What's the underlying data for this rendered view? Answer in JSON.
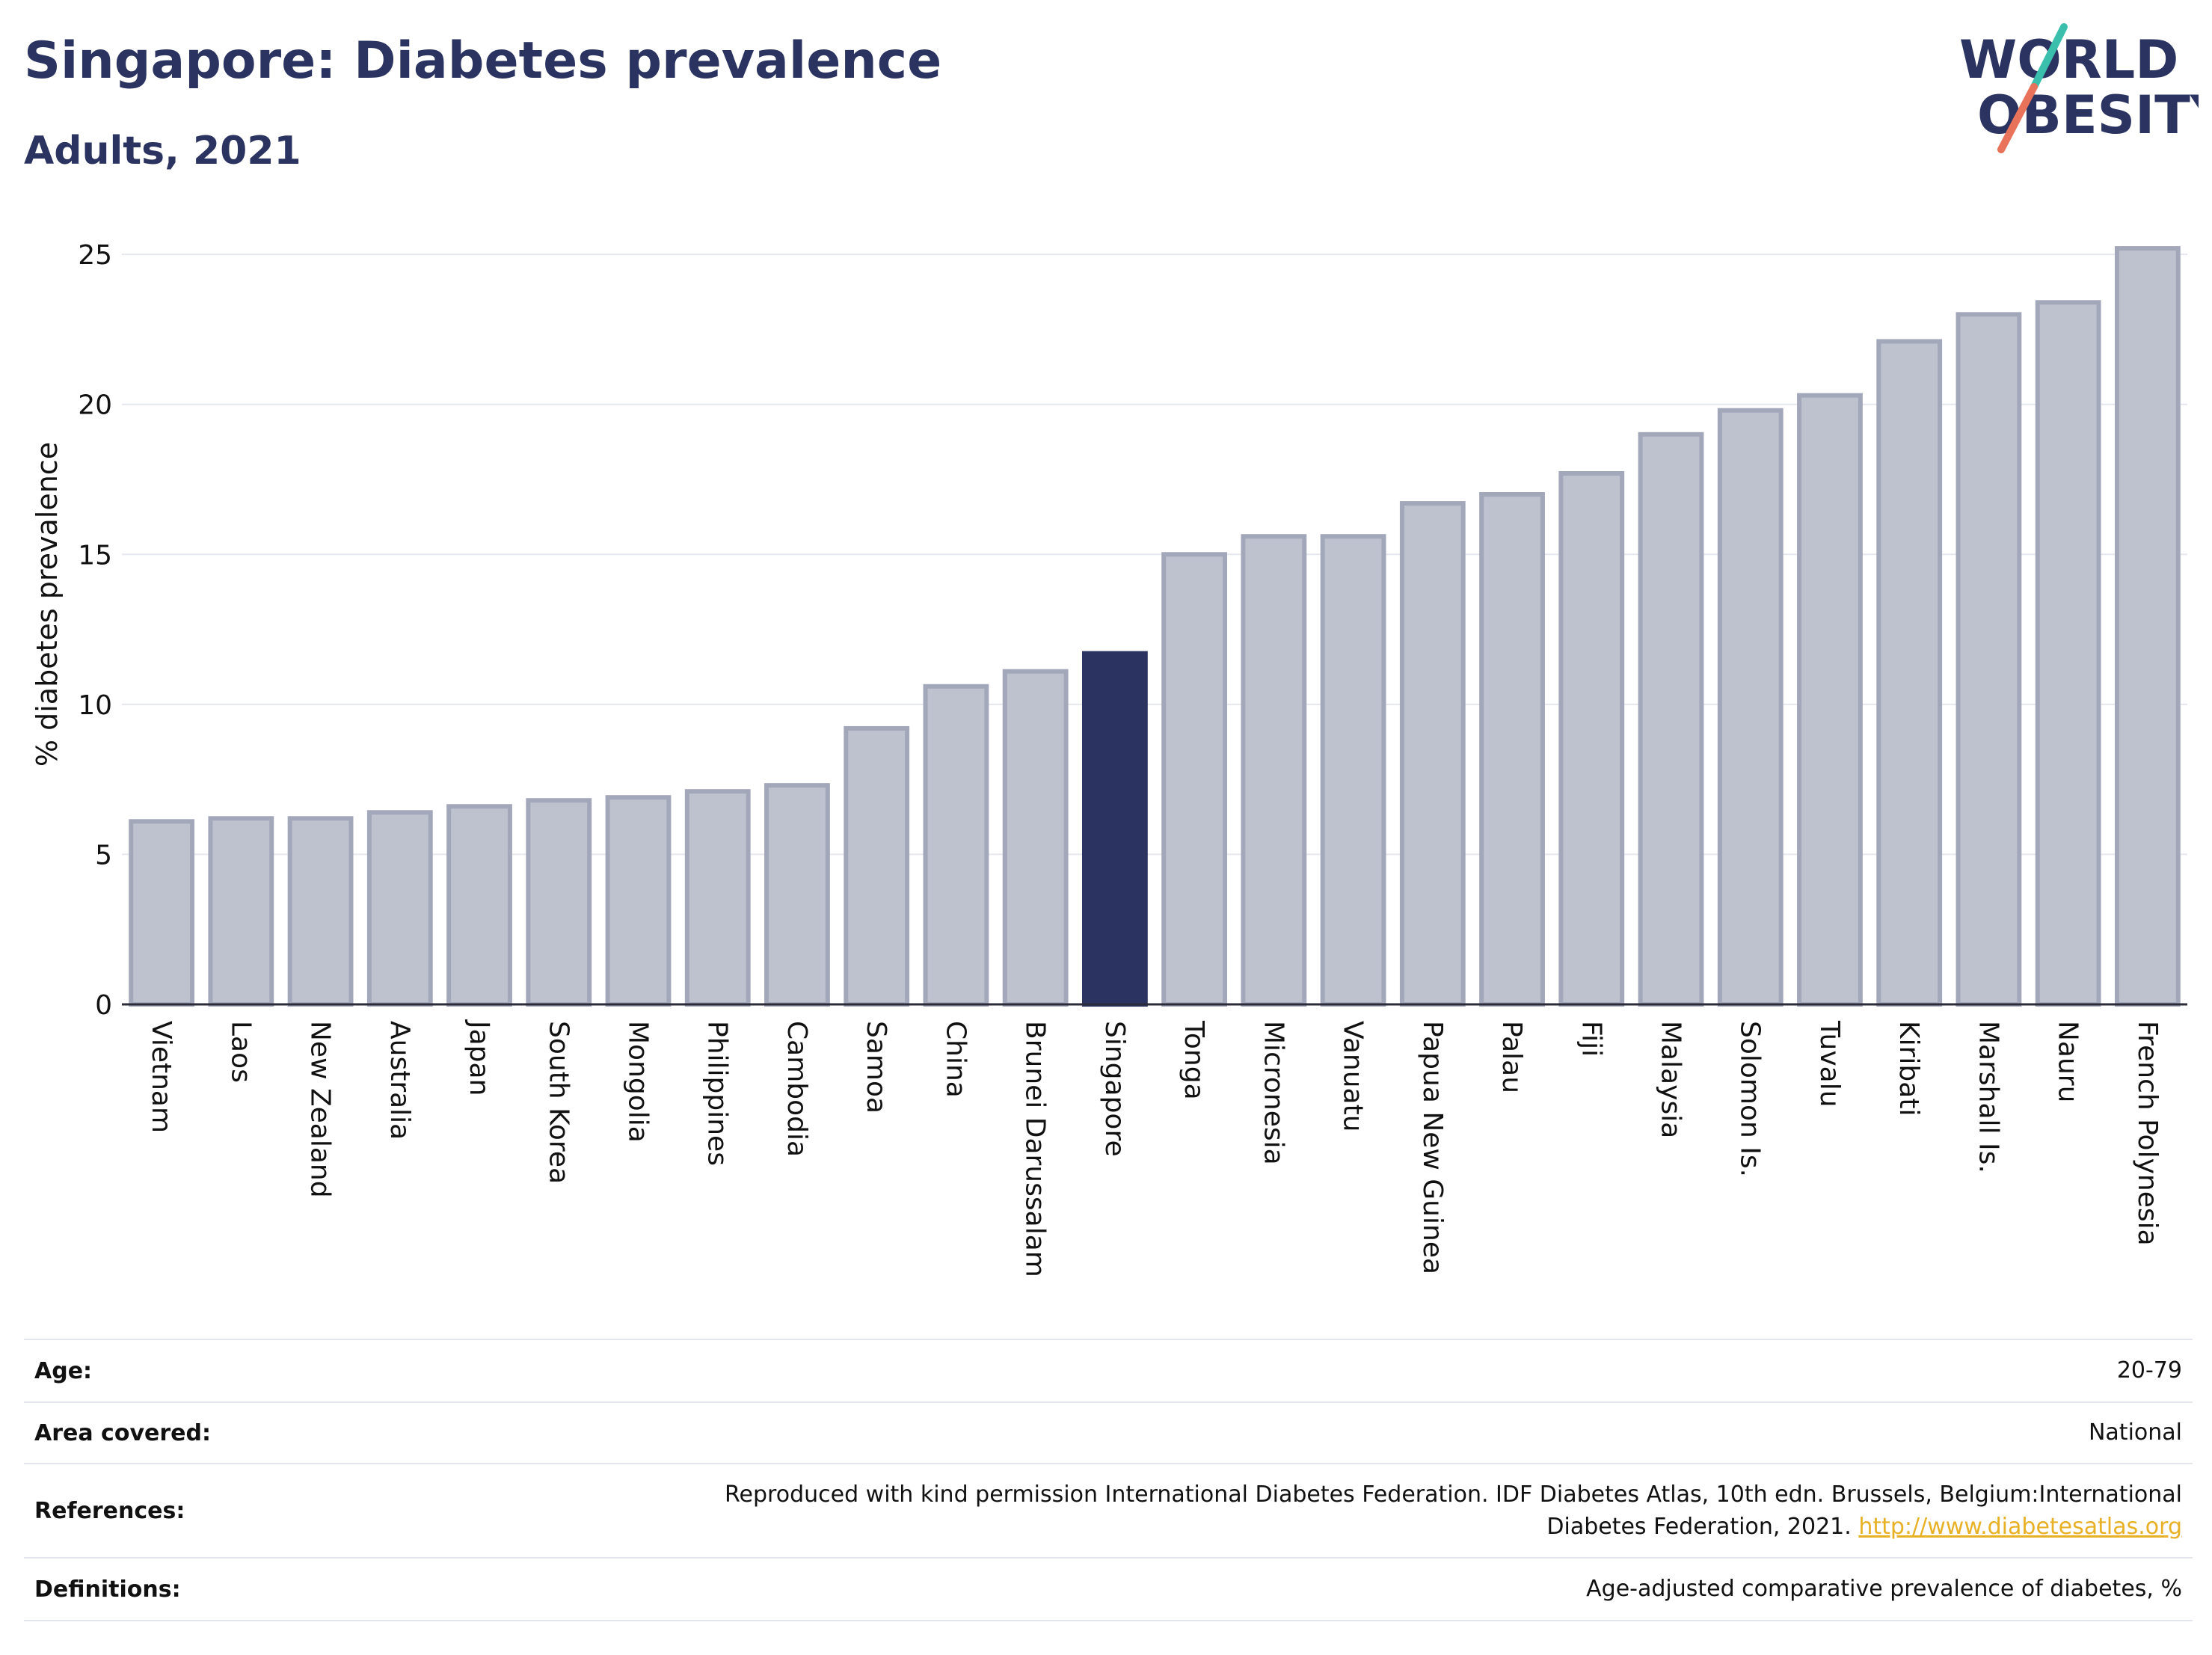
{
  "header": {
    "title": "Singapore: Diabetes prevalence",
    "subtitle": "Adults, 2021"
  },
  "logo": {
    "line1": "WORLD",
    "line2": "OBESITY",
    "colors": {
      "text": "#2b3461",
      "slash_top": "#3bbfad",
      "slash_bottom": "#e8735a"
    }
  },
  "chart_data": {
    "type": "bar",
    "ylabel": "% diabetes prevalence",
    "xlabel": "",
    "ylim": [
      0,
      26
    ],
    "yticks": [
      0,
      5,
      10,
      15,
      20,
      25
    ],
    "grid": true,
    "highlight": "Singapore",
    "colors": {
      "bar": "#bec1ce",
      "bar_border": "#a3a7ba",
      "highlight": "#2b3461"
    },
    "categories": [
      "Vietnam",
      "Laos",
      "New Zealand",
      "Australia",
      "Japan",
      "South Korea",
      "Mongolia",
      "Philippines",
      "Cambodia",
      "Samoa",
      "China",
      "Brunei Darussalam",
      "Singapore",
      "Tonga",
      "Micronesia",
      "Vanuatu",
      "Papua New Guinea",
      "Palau",
      "Fiji",
      "Malaysia",
      "Solomon Is.",
      "Tuvalu",
      "Kiribati",
      "Marshall Is.",
      "Nauru",
      "French Polynesia"
    ],
    "values": [
      6.1,
      6.2,
      6.2,
      6.4,
      6.6,
      6.8,
      6.9,
      7.1,
      7.3,
      9.2,
      10.6,
      11.1,
      11.7,
      15.0,
      15.6,
      15.6,
      16.7,
      17.0,
      17.7,
      19.0,
      19.8,
      20.3,
      22.1,
      23.0,
      23.4,
      25.2
    ]
  },
  "meta": {
    "age_label": "Age:",
    "age_value": "20-79",
    "area_label": "Area covered:",
    "area_value": "National",
    "references_label": "References:",
    "references_text": "Reproduced with kind permission International Diabetes Federation.  IDF Diabetes Atlas, 10th edn. Brussels, Belgium:International Diabetes Federation, 2021. ",
    "references_link": "http://www.diabetesatlas.org",
    "definitions_label": "Definitions:",
    "definitions_value": "Age-adjusted comparative prevalence of diabetes, %"
  }
}
